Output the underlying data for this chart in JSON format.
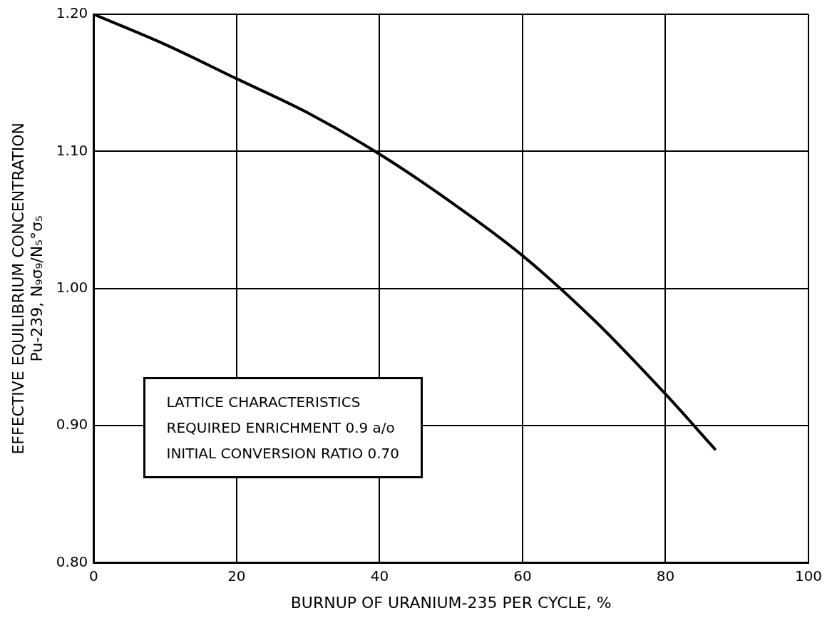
{
  "chart_data": {
    "type": "line",
    "xlabel": "BURNUP OF URANIUM-235 PER CYCLE, %",
    "ylabel": [
      "EFFECTIVE EQUILIBRIUM CONCENTRATION",
      "Pu-239, N₉σ₉/N₅°σ₅"
    ],
    "x": [
      0,
      10,
      20,
      30,
      40,
      50,
      60,
      70,
      80,
      86.9
    ],
    "series": [
      {
        "color": "#000000",
        "values": [
          1.2,
          1.178,
          1.153,
          1.128,
          1.098,
          1.063,
          1.024,
          0.977,
          0.923,
          0.883
        ]
      }
    ],
    "xlim": [
      0,
      100
    ],
    "xticks": [
      0,
      20,
      40,
      60,
      80,
      100
    ],
    "ylim": [
      0.8,
      1.2
    ],
    "yticks": [
      {
        "value": 0.8,
        "label": "0.80"
      },
      {
        "value": 0.9,
        "label": "0.90"
      },
      {
        "value": 1.0,
        "label": "1.00"
      },
      {
        "value": 1.1,
        "label": "1.10"
      },
      {
        "value": 1.2,
        "label": "1.20"
      }
    ],
    "grid": true,
    "legend": false,
    "marker": "none",
    "line_style": "solid",
    "annotations": [
      "LATTICE CHARACTERISTICS",
      "REQUIRED ENRICHMENT 0.9 a/o",
      "INITIAL CONVERSION RATIO 0.70"
    ]
  }
}
